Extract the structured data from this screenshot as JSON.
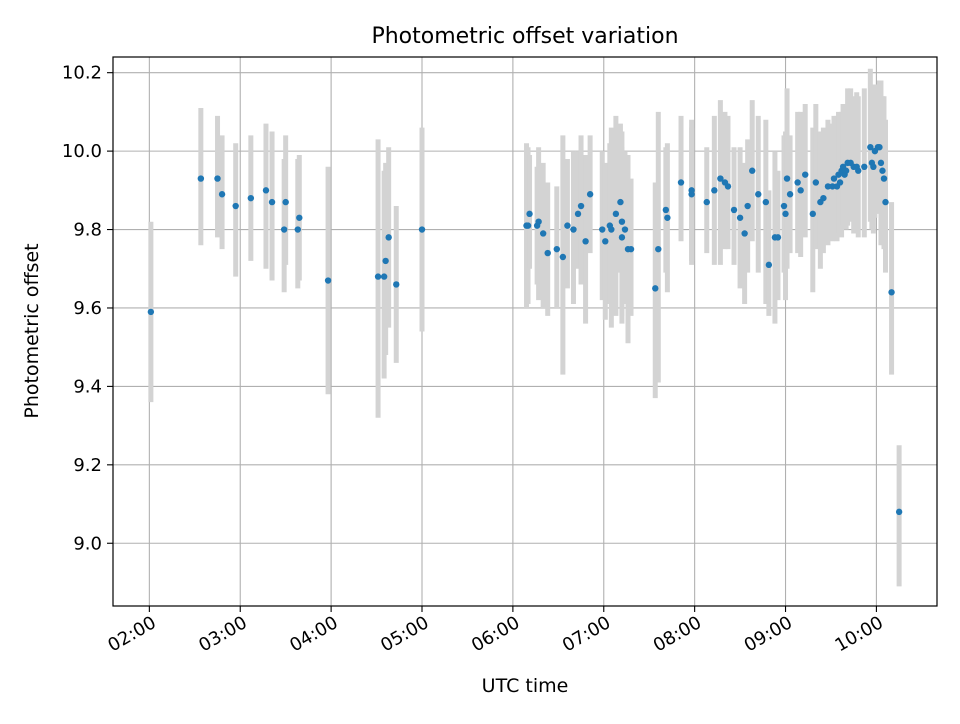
{
  "chart_data": {
    "type": "scatter",
    "title": "Photometric offset variation",
    "xlabel": "UTC time",
    "ylabel": "Photometric offset",
    "x_type": "time",
    "xlim": [
      "01:36",
      "10:40"
    ],
    "ylim": [
      8.84,
      10.24
    ],
    "x_ticks": [
      "02:00",
      "03:00",
      "04:00",
      "05:00",
      "06:00",
      "07:00",
      "08:00",
      "09:00",
      "10:00"
    ],
    "y_ticks": [
      9.0,
      9.2,
      9.4,
      9.6,
      9.8,
      10.0,
      10.2
    ],
    "grid": true,
    "colors": {
      "points": "#1f77b4",
      "errorbars": "#d3d3d3",
      "grid": "#b0b0b0"
    },
    "series": [
      {
        "x": [
          "02:01",
          "02:34",
          "02:45",
          "02:48",
          "02:57",
          "03:07",
          "03:17",
          "03:21",
          "03:29",
          "03:30",
          "03:38",
          "03:39",
          "03:58",
          "04:31",
          "04:35",
          "04:36",
          "04:38",
          "04:43",
          "05:00",
          "06:09",
          "06:10",
          "06:11",
          "06:16",
          "06:17",
          "06:20",
          "06:23",
          "06:29",
          "06:33",
          "06:36",
          "06:40",
          "06:43",
          "06:45",
          "06:48",
          "06:51",
          "06:59",
          "07:01",
          "07:04",
          "07:05",
          "07:08",
          "07:11",
          "07:12",
          "07:12",
          "07:14",
          "07:16",
          "07:18",
          "07:34",
          "07:36",
          "07:41",
          "07:42",
          "07:51",
          "07:58",
          "07:58",
          "08:08",
          "08:13",
          "08:17",
          "08:20",
          "08:22",
          "08:26",
          "08:30",
          "08:33",
          "08:35",
          "08:38",
          "08:42",
          "08:47",
          "08:49",
          "08:53",
          "08:55",
          "08:59",
          "09:00",
          "09:01",
          "09:03",
          "09:08",
          "09:10",
          "09:13",
          "09:18",
          "09:20",
          "09:23",
          "09:25",
          "09:28",
          "09:31",
          "09:32",
          "09:34",
          "09:35",
          "09:36",
          "09:37",
          "09:38",
          "09:39",
          "09:40",
          "09:41",
          "09:43",
          "09:45",
          "09:47",
          "09:48",
          "09:52",
          "09:56",
          "09:57",
          "09:58",
          "09:59",
          "10:01",
          "10:02",
          "10:03",
          "10:04",
          "10:05",
          "10:06",
          "10:10",
          "10:15"
        ],
        "y": [
          9.59,
          9.93,
          9.93,
          9.89,
          9.86,
          9.88,
          9.9,
          9.87,
          9.8,
          9.87,
          9.8,
          9.83,
          9.67,
          9.68,
          9.68,
          9.72,
          9.78,
          9.66,
          9.8,
          9.81,
          9.81,
          9.84,
          9.81,
          9.82,
          9.79,
          9.74,
          9.75,
          9.73,
          9.81,
          9.8,
          9.84,
          9.86,
          9.77,
          9.89,
          9.8,
          9.77,
          9.81,
          9.8,
          9.84,
          9.87,
          9.82,
          9.78,
          9.8,
          9.75,
          9.75,
          9.65,
          9.75,
          9.85,
          9.83,
          9.92,
          9.89,
          9.9,
          9.87,
          9.9,
          9.93,
          9.92,
          9.91,
          9.85,
          9.83,
          9.79,
          9.86,
          9.95,
          9.89,
          9.87,
          9.71,
          9.78,
          9.78,
          9.86,
          9.84,
          9.93,
          9.89,
          9.92,
          9.9,
          9.94,
          9.84,
          9.92,
          9.87,
          9.88,
          9.91,
          9.91,
          9.93,
          9.91,
          9.94,
          9.92,
          9.95,
          9.96,
          9.94,
          9.95,
          9.97,
          9.97,
          9.96,
          9.96,
          9.95,
          9.96,
          10.01,
          9.97,
          9.96,
          10.0,
          10.01,
          10.01,
          9.97,
          9.95,
          9.93,
          9.87,
          9.64,
          9.08
        ],
        "err_low": [
          9.36,
          9.76,
          9.78,
          9.75,
          9.68,
          9.72,
          9.7,
          9.67,
          9.64,
          9.71,
          9.65,
          9.67,
          9.38,
          9.32,
          9.42,
          9.48,
          9.55,
          9.46,
          9.54,
          9.6,
          9.61,
          9.7,
          9.66,
          9.62,
          9.6,
          9.58,
          9.6,
          9.43,
          9.65,
          9.61,
          9.7,
          9.66,
          9.56,
          9.74,
          9.62,
          9.57,
          9.61,
          9.55,
          9.58,
          9.69,
          9.58,
          9.56,
          9.61,
          9.51,
          9.58,
          9.37,
          9.41,
          9.69,
          9.64,
          9.77,
          9.72,
          9.71,
          9.74,
          9.71,
          9.71,
          9.75,
          9.75,
          9.71,
          9.65,
          9.61,
          9.69,
          9.77,
          9.69,
          9.61,
          9.58,
          9.56,
          9.62,
          9.69,
          9.62,
          9.7,
          9.74,
          9.74,
          9.73,
          9.78,
          9.64,
          9.75,
          9.7,
          9.74,
          9.76,
          9.77,
          9.79,
          9.77,
          9.79,
          9.81,
          9.78,
          9.81,
          9.8,
          9.8,
          9.81,
          9.82,
          9.79,
          9.8,
          9.78,
          9.78,
          9.82,
          9.8,
          9.79,
          9.83,
          9.86,
          9.84,
          9.76,
          9.77,
          9.75,
          9.69,
          9.43,
          8.89
        ],
        "err_high": [
          9.82,
          10.11,
          10.09,
          10.04,
          10.02,
          10.04,
          10.07,
          10.05,
          9.98,
          10.04,
          9.98,
          9.99,
          9.96,
          10.03,
          9.95,
          9.97,
          10.01,
          9.86,
          10.06,
          10.02,
          10.01,
          9.99,
          9.96,
          10.01,
          9.97,
          9.92,
          9.91,
          10.04,
          9.98,
          10.0,
          10.0,
          10.04,
          9.99,
          10.04,
          10.0,
          9.97,
          10.02,
          10.06,
          10.09,
          10.07,
          10.05,
          10.01,
          10.0,
          9.99,
          9.93,
          9.92,
          10.1,
          10.01,
          10.02,
          10.09,
          10.06,
          10.08,
          10.01,
          10.09,
          10.13,
          10.1,
          10.09,
          10.01,
          10.01,
          9.97,
          10.03,
          10.13,
          10.09,
          10.08,
          9.9,
          10.0,
          9.95,
          10.04,
          10.05,
          10.16,
          10.04,
          10.1,
          10.1,
          10.12,
          10.06,
          10.12,
          10.05,
          10.06,
          10.08,
          10.07,
          10.09,
          10.09,
          10.1,
          10.07,
          10.1,
          10.12,
          10.1,
          10.12,
          10.16,
          10.16,
          10.14,
          10.15,
          10.14,
          10.16,
          10.21,
          10.16,
          10.15,
          10.17,
          10.17,
          10.18,
          10.18,
          10.14,
          10.14,
          10.08,
          9.87,
          9.25
        ]
      }
    ]
  }
}
